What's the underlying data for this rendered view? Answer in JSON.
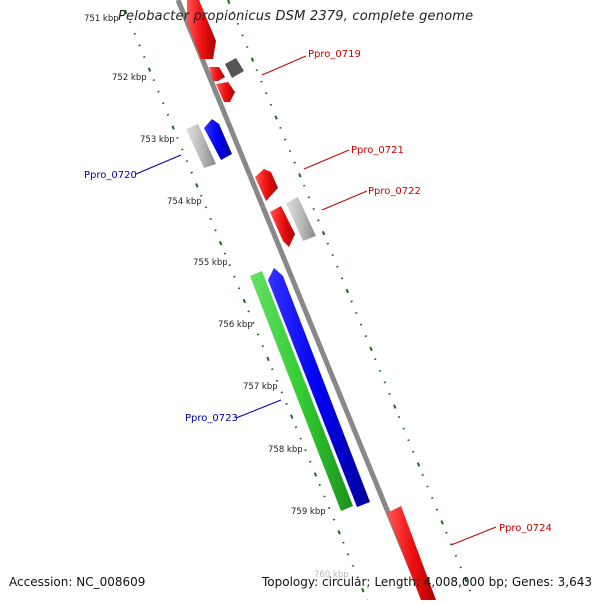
{
  "title": "Pelobacter propionicus DSM 2379, complete genome",
  "scale_labels": [
    "751 kbp",
    "752 kbp",
    "753 kbp",
    "754 kbp",
    "755 kbp",
    "756 kbp",
    "757 kbp",
    "758 kbp",
    "759 kbp",
    "760 kbp"
  ],
  "genes": [
    {
      "label": "Ppro_0719",
      "color": "#cc0000"
    },
    {
      "label": "Ppro_0720",
      "color": "#0000aa"
    },
    {
      "label": "Ppro_0721",
      "color": "#cc0000"
    },
    {
      "label": "Ppro_0722",
      "color": "#cc0000"
    },
    {
      "label": "Ppro_0723",
      "color": "#0000aa"
    },
    {
      "label": "Ppro_0724",
      "color": "#cc0000"
    }
  ],
  "colors": {
    "backbone": "#888888",
    "red_feature": "#ee1111",
    "blue_feature": "#0000ee",
    "green_feature": "#33cc33",
    "grey_feature": "#bbbbbb",
    "dark_feature": "#555555",
    "tick": "#226622"
  },
  "footer": {
    "accession": "Accession: NC_008609",
    "topology": "Topology: circular;",
    "length": "Length: 4,008,000 bp;",
    "genes_count": "Genes: 3,643"
  }
}
